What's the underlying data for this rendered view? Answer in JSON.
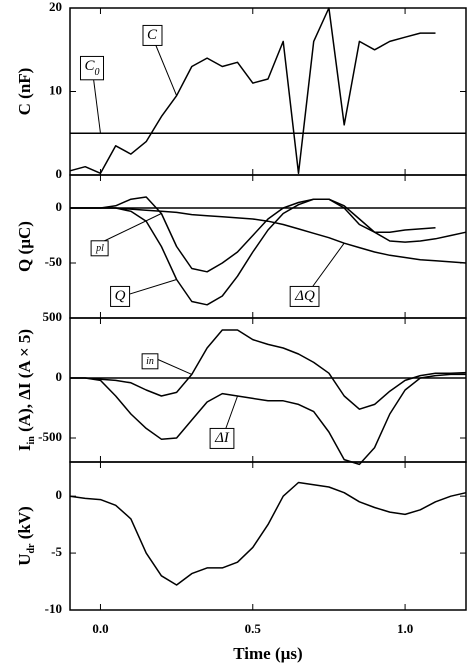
{
  "chart_data": [
    {
      "type": "line",
      "ylabel": [
        {
          "text": "C (nF)"
        }
      ],
      "x": [
        -0.1,
        -0.05,
        0,
        0.05,
        0.1,
        0.15,
        0.2,
        0.25,
        0.3,
        0.35,
        0.4,
        0.45,
        0.5,
        0.55,
        0.6,
        0.65,
        0.7,
        0.75,
        0.8,
        0.85,
        0.9,
        0.95,
        1,
        1.05,
        1.1,
        1.15,
        1.2
      ],
      "xlim": [
        -0.1,
        1.2
      ],
      "ylim": [
        0,
        20
      ],
      "yticks": [
        0,
        10,
        20
      ],
      "hlines": [
        {
          "value": 5,
          "label": {
            "text": "C",
            "sub": "0"
          }
        }
      ],
      "series": [
        {
          "name": "C",
          "color": "#000000",
          "values": [
            0.5,
            1,
            0.2,
            3.5,
            2.5,
            4,
            7,
            9.5,
            13,
            14,
            13,
            13.5,
            11,
            11.5,
            16,
            0.2,
            16,
            20,
            6,
            16,
            15,
            16,
            16.5,
            17,
            17,
            null,
            null
          ]
        }
      ]
    },
    {
      "type": "line",
      "ylabel": [
        {
          "text": "Q (µC)"
        }
      ],
      "x": [
        -0.1,
        -0.05,
        0,
        0.05,
        0.1,
        0.15,
        0.2,
        0.25,
        0.3,
        0.35,
        0.4,
        0.45,
        0.5,
        0.55,
        0.6,
        0.65,
        0.7,
        0.75,
        0.8,
        0.85,
        0.9,
        0.95,
        1,
        1.05,
        1.1,
        1.15,
        1.2
      ],
      "xlim": [
        -0.1,
        1.2
      ],
      "ylim": [
        -100,
        30
      ],
      "yticks": [
        -50,
        0
      ],
      "hlines": [
        {
          "value": 0
        }
      ],
      "series": [
        {
          "name": "Q",
          "sub": "pl",
          "color": "#000000",
          "values": [
            0,
            0,
            0,
            2,
            8,
            10,
            -5,
            -35,
            -55,
            -58,
            -50,
            -40,
            -25,
            -10,
            0,
            5,
            8,
            8,
            0,
            -15,
            -22,
            -22,
            -20,
            -19,
            -18,
            null,
            null
          ]
        },
        {
          "name": "Q",
          "color": "#000000",
          "values": [
            0,
            0,
            0,
            0,
            -3,
            -12,
            -35,
            -65,
            -85,
            -88,
            -80,
            -62,
            -40,
            -20,
            -5,
            3,
            8,
            8,
            2,
            -10,
            -22,
            -30,
            -31,
            -30,
            -28,
            -25,
            -22
          ]
        },
        {
          "name": "ΔQ",
          "color": "#000000",
          "values": [
            0,
            0,
            0,
            0,
            -1,
            -2,
            -3,
            -4,
            -6,
            -7,
            -8,
            -9,
            -10,
            -12,
            -15,
            -19,
            -23,
            -27,
            -32,
            -36,
            -40,
            -43,
            -45,
            -47,
            -48,
            -49,
            -50
          ]
        }
      ]
    },
    {
      "type": "line",
      "ylabel": [
        {
          "text": "I"
        },
        {
          "sub": "in"
        },
        {
          "text": " (A), ΔI (A × 5)"
        }
      ],
      "x": [
        -0.1,
        -0.05,
        0,
        0.05,
        0.1,
        0.15,
        0.2,
        0.25,
        0.3,
        0.35,
        0.4,
        0.45,
        0.5,
        0.55,
        0.6,
        0.65,
        0.7,
        0.75,
        0.8,
        0.85,
        0.9,
        0.95,
        1,
        1.05,
        1.1,
        1.15,
        1.2
      ],
      "xlim": [
        -0.1,
        1.2
      ],
      "ylim": [
        -700,
        500
      ],
      "yticks": [
        -500,
        0,
        500
      ],
      "hlines": [
        {
          "value": 0
        }
      ],
      "series": [
        {
          "name": "I",
          "sub": "in",
          "color": "#000000",
          "values": [
            0,
            0,
            -10,
            -20,
            -40,
            -100,
            -150,
            -120,
            30,
            250,
            400,
            400,
            320,
            280,
            250,
            200,
            130,
            40,
            -150,
            -260,
            -220,
            -110,
            -20,
            20,
            40,
            40,
            45
          ]
        },
        {
          "name": "ΔI",
          "color": "#000000",
          "values": [
            0,
            0,
            -20,
            -150,
            -300,
            -420,
            -510,
            -500,
            -350,
            -200,
            -130,
            -150,
            -170,
            -190,
            -190,
            -220,
            -280,
            -450,
            -680,
            -720,
            -580,
            -300,
            -100,
            0,
            20,
            30,
            30
          ]
        }
      ]
    },
    {
      "type": "line",
      "ylabel": [
        {
          "text": "U"
        },
        {
          "sub": "dr"
        },
        {
          "text": " (kV)"
        }
      ],
      "x": [
        -0.1,
        -0.05,
        0,
        0.05,
        0.1,
        0.15,
        0.2,
        0.25,
        0.3,
        0.35,
        0.4,
        0.45,
        0.5,
        0.55,
        0.6,
        0.65,
        0.7,
        0.75,
        0.8,
        0.85,
        0.9,
        0.95,
        1,
        1.05,
        1.1,
        1.15,
        1.2
      ],
      "xlim": [
        -0.1,
        1.2
      ],
      "ylim": [
        -10,
        3
      ],
      "yticks": [
        -10,
        -5,
        0
      ],
      "xticks": [
        {
          "value": 0,
          "label": "0.0"
        },
        0.5,
        {
          "value": 1,
          "label": "1.0"
        }
      ],
      "xlabel": "Time (µs)",
      "series": [
        {
          "name": "U",
          "color": "#000000",
          "values": [
            0,
            -0.2,
            -0.3,
            -0.8,
            -2,
            -5,
            -7,
            -7.8,
            -6.8,
            -6.3,
            -6.3,
            -5.8,
            -4.5,
            -2.5,
            0,
            1.2,
            1,
            0.8,
            0.3,
            -0.5,
            -1,
            -1.4,
            -1.6,
            -1.2,
            -0.5,
            0,
            0.3
          ]
        }
      ]
    }
  ]
}
